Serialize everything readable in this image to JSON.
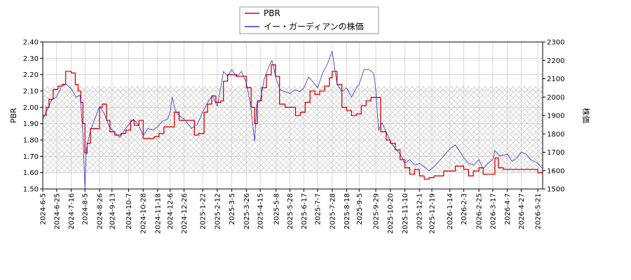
{
  "chart_data": {
    "type": "line",
    "grid": true,
    "legend_position": "top-center",
    "hatched_band": {
      "left_axis_range": [
        1.6,
        2.13
      ]
    },
    "left_axis": {
      "label": "PBR",
      "range": [
        1.5,
        2.4
      ],
      "ticks": [
        "1.50",
        "1.60",
        "1.70",
        "1.80",
        "1.90",
        "2.00",
        "2.10",
        "2.20",
        "2.30",
        "2.40"
      ]
    },
    "right_axis": {
      "label": "株価",
      "range": [
        1500,
        2300
      ],
      "ticks": [
        "1500",
        "1600",
        "1700",
        "1800",
        "1900",
        "2000",
        "2100",
        "2200",
        "2300"
      ]
    },
    "x_range": [
      "2024-6-5",
      "2026-5-28"
    ],
    "x_ticks": [
      "2024-6-5",
      "2024-6-25",
      "2024-7-16",
      "2024-8-5",
      "2024-8-26",
      "2024-9-13",
      "2024-10-7",
      "2024-10-28",
      "2024-11-18",
      "2024-12-6",
      "2024-12-26",
      "2025-1-22",
      "2025-2-12",
      "2025-3-5",
      "2025-3-26",
      "2025-4-15",
      "2025-5-8",
      "2025-5-28",
      "2025-6-17",
      "2025-7-7",
      "2025-7-28",
      "2025-8-18",
      "2025-9-5",
      "2025-9-29",
      "2025-10-20",
      "2025-11-10",
      "2025-12-1",
      "2025-12-19",
      "2026-1-14",
      "2026-2-3",
      "2026-2-25",
      "2026-3-17",
      "2026-4-7",
      "2026-4-27",
      "2026-5-21"
    ],
    "series": [
      {
        "name": "PBR",
        "axis": "left",
        "color": "#dd0000",
        "step": true,
        "points": [
          [
            "2024-6-5",
            1.95
          ],
          [
            "2024-6-10",
            2.0
          ],
          [
            "2024-6-14",
            2.05
          ],
          [
            "2024-6-20",
            2.11
          ],
          [
            "2024-6-27",
            2.13
          ],
          [
            "2024-7-3",
            2.14
          ],
          [
            "2024-7-8",
            2.22
          ],
          [
            "2024-7-16",
            2.21
          ],
          [
            "2024-7-22",
            2.14
          ],
          [
            "2024-7-26",
            2.1
          ],
          [
            "2024-7-30",
            2.03
          ],
          [
            "2024-8-2",
            1.9
          ],
          [
            "2024-8-5",
            1.72
          ],
          [
            "2024-8-8",
            1.78
          ],
          [
            "2024-8-13",
            1.87
          ],
          [
            "2024-8-20",
            1.87
          ],
          [
            "2024-8-26",
            2.0
          ],
          [
            "2024-8-30",
            2.02
          ],
          [
            "2024-9-5",
            1.92
          ],
          [
            "2024-9-10",
            1.85
          ],
          [
            "2024-9-17",
            1.83
          ],
          [
            "2024-9-26",
            1.84
          ],
          [
            "2024-10-3",
            1.86
          ],
          [
            "2024-10-10",
            1.92
          ],
          [
            "2024-10-15",
            1.89
          ],
          [
            "2024-10-22",
            1.92
          ],
          [
            "2024-10-28",
            1.81
          ],
          [
            "2024-11-6",
            1.81
          ],
          [
            "2024-11-13",
            1.82
          ],
          [
            "2024-11-20",
            1.84
          ],
          [
            "2024-11-27",
            1.88
          ],
          [
            "2024-12-6",
            1.88
          ],
          [
            "2024-12-12",
            1.97
          ],
          [
            "2024-12-19",
            1.92
          ],
          [
            "2024-12-26",
            1.92
          ],
          [
            "2025-1-10",
            1.83
          ],
          [
            "2025-1-16",
            1.84
          ],
          [
            "2025-1-24",
            1.97
          ],
          [
            "2025-1-29",
            2.02
          ],
          [
            "2025-2-4",
            2.07
          ],
          [
            "2025-2-10",
            2.03
          ],
          [
            "2025-2-17",
            2.04
          ],
          [
            "2025-2-21",
            2.16
          ],
          [
            "2025-2-27",
            2.2
          ],
          [
            "2025-3-5",
            2.2
          ],
          [
            "2025-3-12",
            2.19
          ],
          [
            "2025-3-19",
            2.19
          ],
          [
            "2025-3-26",
            2.12
          ],
          [
            "2025-4-2",
            2.0
          ],
          [
            "2025-4-7",
            1.9
          ],
          [
            "2025-4-11",
            2.04
          ],
          [
            "2025-4-17",
            2.12
          ],
          [
            "2025-4-24",
            2.2
          ],
          [
            "2025-5-1",
            2.26
          ],
          [
            "2025-5-7",
            2.19
          ],
          [
            "2025-5-13",
            2.02
          ],
          [
            "2025-5-21",
            2.0
          ],
          [
            "2025-5-30",
            2.0
          ],
          [
            "2025-6-5",
            1.95
          ],
          [
            "2025-6-12",
            1.97
          ],
          [
            "2025-6-19",
            2.03
          ],
          [
            "2025-6-26",
            2.1
          ],
          [
            "2025-7-3",
            2.08
          ],
          [
            "2025-7-10",
            2.1
          ],
          [
            "2025-7-17",
            2.13
          ],
          [
            "2025-7-24",
            2.18
          ],
          [
            "2025-7-28",
            2.22
          ],
          [
            "2025-8-4",
            2.14
          ],
          [
            "2025-8-11",
            2.0
          ],
          [
            "2025-8-18",
            1.98
          ],
          [
            "2025-8-25",
            1.95
          ],
          [
            "2025-9-1",
            1.96
          ],
          [
            "2025-9-8",
            2.01
          ],
          [
            "2025-9-15",
            2.04
          ],
          [
            "2025-9-22",
            2.06
          ],
          [
            "2025-9-29",
            2.06
          ],
          [
            "2025-10-6",
            1.85
          ],
          [
            "2025-10-14",
            1.8
          ],
          [
            "2025-10-20",
            1.78
          ],
          [
            "2025-10-27",
            1.74
          ],
          [
            "2025-11-3",
            1.68
          ],
          [
            "2025-11-10",
            1.63
          ],
          [
            "2025-11-17",
            1.59
          ],
          [
            "2025-11-24",
            1.62
          ],
          [
            "2025-12-1",
            1.58
          ],
          [
            "2025-12-8",
            1.56
          ],
          [
            "2025-12-15",
            1.57
          ],
          [
            "2025-12-22",
            1.58
          ],
          [
            "2026-1-5",
            1.61
          ],
          [
            "2026-1-14",
            1.61
          ],
          [
            "2026-1-22",
            1.64
          ],
          [
            "2026-2-3",
            1.62
          ],
          [
            "2026-2-10",
            1.58
          ],
          [
            "2026-2-17",
            1.61
          ],
          [
            "2026-2-25",
            1.63
          ],
          [
            "2026-3-3",
            1.59
          ],
          [
            "2026-3-10",
            1.59
          ],
          [
            "2026-3-17",
            1.59
          ],
          [
            "2026-3-20",
            1.69
          ],
          [
            "2026-3-25",
            1.63
          ],
          [
            "2026-4-1",
            1.62
          ],
          [
            "2026-4-15",
            1.62
          ],
          [
            "2026-5-1",
            1.62
          ],
          [
            "2026-5-15",
            1.62
          ],
          [
            "2026-5-21",
            1.6
          ],
          [
            "2026-5-28",
            1.6
          ]
        ]
      },
      {
        "name": "イー・ガーディアンの株価",
        "axis": "right",
        "color": "#3333cc",
        "step": false,
        "points": [
          [
            "2024-6-5",
            1880
          ],
          [
            "2024-6-12",
            1935
          ],
          [
            "2024-6-18",
            1985
          ],
          [
            "2024-6-25",
            2000
          ],
          [
            "2024-7-2",
            2060
          ],
          [
            "2024-7-9",
            2070
          ],
          [
            "2024-7-16",
            2045
          ],
          [
            "2024-7-23",
            2000
          ],
          [
            "2024-7-29",
            2010
          ],
          [
            "2024-8-2",
            1800
          ],
          [
            "2024-8-5",
            1500
          ],
          [
            "2024-8-7",
            1720
          ],
          [
            "2024-8-13",
            1820
          ],
          [
            "2024-8-20",
            1890
          ],
          [
            "2024-8-26",
            1950
          ],
          [
            "2024-9-2",
            1910
          ],
          [
            "2024-9-9",
            1840
          ],
          [
            "2024-9-16",
            1810
          ],
          [
            "2024-9-24",
            1780
          ],
          [
            "2024-10-1",
            1820
          ],
          [
            "2024-10-7",
            1850
          ],
          [
            "2024-10-14",
            1880
          ],
          [
            "2024-10-21",
            1850
          ],
          [
            "2024-10-28",
            1790
          ],
          [
            "2024-11-4",
            1830
          ],
          [
            "2024-11-11",
            1820
          ],
          [
            "2024-11-18",
            1840
          ],
          [
            "2024-11-25",
            1870
          ],
          [
            "2024-12-2",
            1880
          ],
          [
            "2024-12-6",
            1920
          ],
          [
            "2024-12-9",
            2000
          ],
          [
            "2024-12-13",
            1930
          ],
          [
            "2024-12-19",
            1900
          ],
          [
            "2024-12-26",
            1880
          ],
          [
            "2025-1-6",
            1830
          ],
          [
            "2025-1-14",
            1850
          ],
          [
            "2025-1-22",
            1920
          ],
          [
            "2025-1-29",
            1970
          ],
          [
            "2025-2-5",
            2010
          ],
          [
            "2025-2-12",
            1950
          ],
          [
            "2025-2-17",
            2050
          ],
          [
            "2025-2-21",
            2140
          ],
          [
            "2025-2-27",
            2115
          ],
          [
            "2025-3-5",
            2150
          ],
          [
            "2025-3-12",
            2110
          ],
          [
            "2025-3-19",
            2140
          ],
          [
            "2025-3-26",
            2080
          ],
          [
            "2025-4-1",
            1960
          ],
          [
            "2025-4-7",
            1760
          ],
          [
            "2025-4-10",
            1960
          ],
          [
            "2025-4-15",
            1980
          ],
          [
            "2025-4-21",
            2100
          ],
          [
            "2025-4-28",
            2170
          ],
          [
            "2025-5-2",
            2200
          ],
          [
            "2025-5-8",
            2100
          ],
          [
            "2025-5-14",
            2040
          ],
          [
            "2025-5-21",
            2030
          ],
          [
            "2025-5-28",
            2020
          ],
          [
            "2025-6-4",
            2040
          ],
          [
            "2025-6-11",
            2030
          ],
          [
            "2025-6-17",
            2050
          ],
          [
            "2025-6-24",
            2110
          ],
          [
            "2025-7-1",
            2080
          ],
          [
            "2025-7-7",
            2050
          ],
          [
            "2025-7-14",
            2130
          ],
          [
            "2025-7-21",
            2180
          ],
          [
            "2025-7-28",
            2250
          ],
          [
            "2025-8-4",
            2070
          ],
          [
            "2025-8-11",
            2030
          ],
          [
            "2025-8-18",
            2050
          ],
          [
            "2025-8-25",
            2000
          ],
          [
            "2025-9-1",
            2050
          ],
          [
            "2025-9-5",
            2070
          ],
          [
            "2025-9-12",
            2150
          ],
          [
            "2025-9-19",
            2150
          ],
          [
            "2025-9-26",
            2130
          ],
          [
            "2025-9-29",
            2040
          ],
          [
            "2025-10-3",
            1820
          ],
          [
            "2025-10-8",
            1860
          ],
          [
            "2025-10-14",
            1810
          ],
          [
            "2025-10-20",
            1760
          ],
          [
            "2025-10-27",
            1720
          ],
          [
            "2025-11-3",
            1690
          ],
          [
            "2025-11-10",
            1640
          ],
          [
            "2025-11-17",
            1660
          ],
          [
            "2025-11-24",
            1630
          ],
          [
            "2025-12-1",
            1640
          ],
          [
            "2025-12-8",
            1620
          ],
          [
            "2025-12-15",
            1600
          ],
          [
            "2025-12-22",
            1620
          ],
          [
            "2026-1-5",
            1680
          ],
          [
            "2026-1-14",
            1720
          ],
          [
            "2026-1-22",
            1740
          ],
          [
            "2026-1-29",
            1700
          ],
          [
            "2026-2-3",
            1670
          ],
          [
            "2026-2-10",
            1640
          ],
          [
            "2026-2-17",
            1630
          ],
          [
            "2026-2-25",
            1660
          ],
          [
            "2026-3-3",
            1610
          ],
          [
            "2026-3-10",
            1640
          ],
          [
            "2026-3-17",
            1660
          ],
          [
            "2026-3-20",
            1710
          ],
          [
            "2026-3-27",
            1680
          ],
          [
            "2026-4-7",
            1690
          ],
          [
            "2026-4-14",
            1650
          ],
          [
            "2026-4-21",
            1670
          ],
          [
            "2026-4-27",
            1700
          ],
          [
            "2026-5-4",
            1690
          ],
          [
            "2026-5-11",
            1660
          ],
          [
            "2026-5-21",
            1640
          ],
          [
            "2026-5-28",
            1610
          ]
        ]
      }
    ]
  }
}
